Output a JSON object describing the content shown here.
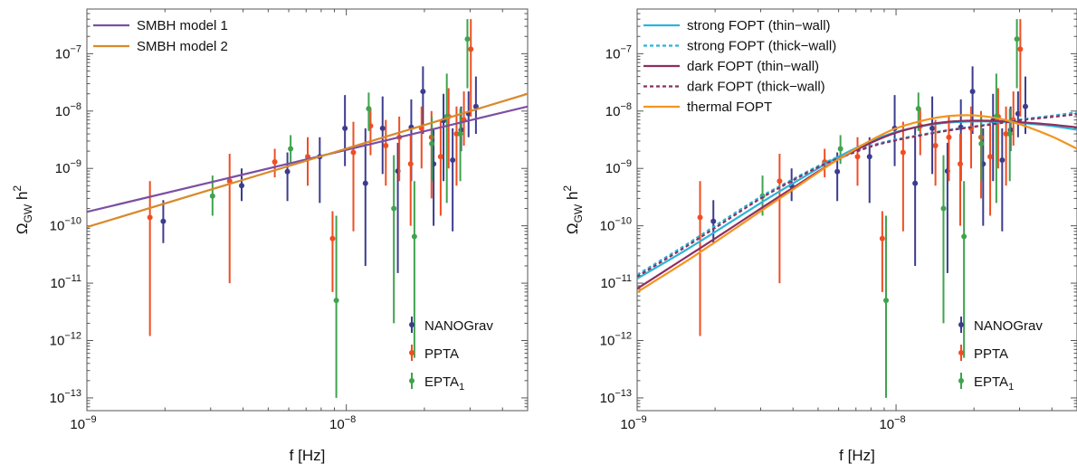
{
  "chart_data": [
    {
      "type": "scatter",
      "xlabel": "f [Hz]",
      "ylabel": "ΩGW h2",
      "xscale": "log",
      "yscale": "log",
      "xlim": [
        1e-09,
        5e-08
      ],
      "ylim": [
        6e-14,
        6e-07
      ],
      "x_ticks": [
        {
          "v": 1e-09,
          "m": "10",
          "e": "−9"
        },
        {
          "v": 1e-08,
          "m": "10",
          "e": "−8"
        }
      ],
      "y_ticks": [
        {
          "v": 1e-13,
          "m": "10",
          "e": "−13"
        },
        {
          "v": 1e-12,
          "m": "10",
          "e": "−12"
        },
        {
          "v": 1e-11,
          "m": "10",
          "e": "−11"
        },
        {
          "v": 1e-10,
          "m": "10",
          "e": "−10"
        },
        {
          "v": 1e-09,
          "m": "10",
          "e": "−9"
        },
        {
          "v": 1e-08,
          "m": "10",
          "e": "−8"
        },
        {
          "v": 1e-07,
          "m": "10",
          "e": "−7"
        }
      ],
      "legend_top": {
        "position": "top-left",
        "entries": [
          0,
          1
        ]
      },
      "legend_bottom": {
        "position": "bottom-right"
      },
      "curves": [
        {
          "name": "SMBH model 1",
          "color": "#7b4fa3",
          "style": "solid",
          "x": [
            1e-09,
            5e-08
          ],
          "y": [
            1.75e-10,
            1.2e-08
          ]
        },
        {
          "name": "SMBH model 2",
          "color": "#d9892b",
          "style": "solid",
          "x": [
            1e-09,
            5e-08
          ],
          "y": [
            9.5e-11,
            2e-08
          ]
        }
      ],
      "series": [
        {
          "name": "NANOGrav",
          "subscript": "",
          "color": "#3c3c8f",
          "points": [
            {
              "x": 1.97e-09,
              "y": 1.2e-10,
              "lo": 5e-11,
              "hi": 2.8e-10
            },
            {
              "x": 3.95e-09,
              "y": 5e-10,
              "lo": 2.7e-10,
              "hi": 1e-09
            },
            {
              "x": 5.93e-09,
              "y": 8.8e-10,
              "lo": 2.7e-10,
              "hi": 1.9e-09
            },
            {
              "x": 7.9e-09,
              "y": 1.6e-09,
              "lo": 2.5e-10,
              "hi": 3.5e-09
            },
            {
              "x": 9.88e-09,
              "y": 5e-09,
              "lo": 1.1e-09,
              "hi": 1.9e-08
            },
            {
              "x": 1.185e-08,
              "y": 5.5e-10,
              "lo": 2e-11,
              "hi": 5e-09
            },
            {
              "x": 1.38e-08,
              "y": 5e-09,
              "lo": 8e-10,
              "hi": 1.8e-08
            },
            {
              "x": 1.58e-08,
              "y": 9e-10,
              "lo": 1.5e-11,
              "hi": 2.8e-09
            },
            {
              "x": 1.78e-08,
              "y": 5.2e-09,
              "lo": 6e-10,
              "hi": 1.6e-08
            },
            {
              "x": 1.975e-08,
              "y": 2.2e-08,
              "lo": 4e-09,
              "hi": 6e-08
            },
            {
              "x": 2.17e-08,
              "y": 1.2e-09,
              "lo": 1e-10,
              "hi": 5e-09
            },
            {
              "x": 2.37e-08,
              "y": 6.8e-09,
              "lo": 6e-10,
              "hi": 2e-08
            },
            {
              "x": 2.57e-08,
              "y": 1.4e-09,
              "lo": 8e-11,
              "hi": 5e-09
            },
            {
              "x": 2.77e-08,
              "y": 4.7e-09,
              "lo": 2e-09,
              "hi": 1.2e-08
            },
            {
              "x": 2.96e-08,
              "y": 9e-09,
              "lo": 3.5e-09,
              "hi": 2.2e-08
            },
            {
              "x": 3.16e-08,
              "y": 1.2e-08,
              "lo": 4e-09,
              "hi": 4e-08
            }
          ]
        },
        {
          "name": "PPTA",
          "subscript": "",
          "color": "#ef4e23",
          "points": [
            {
              "x": 1.75e-09,
              "y": 1.4e-10,
              "lo": 1.2e-12,
              "hi": 6e-10
            },
            {
              "x": 3.55e-09,
              "y": 6e-10,
              "lo": 1e-11,
              "hi": 1.8e-09
            },
            {
              "x": 5.3e-09,
              "y": 1.3e-09,
              "lo": 7e-10,
              "hi": 2.2e-09
            },
            {
              "x": 7.1e-09,
              "y": 1.6e-09,
              "lo": 5e-10,
              "hi": 3.5e-09
            },
            {
              "x": 8.85e-09,
              "y": 6e-11,
              "lo": 7e-12,
              "hi": 1.8e-10
            },
            {
              "x": 1.065e-08,
              "y": 1.9e-09,
              "lo": 8e-11,
              "hi": 6.5e-09
            },
            {
              "x": 1.24e-08,
              "y": 5.5e-09,
              "lo": 1.7e-09,
              "hi": 1.1e-08
            },
            {
              "x": 1.42e-08,
              "y": 2.5e-09,
              "lo": 5e-10,
              "hi": 7e-09
            },
            {
              "x": 1.6e-08,
              "y": 3.5e-09,
              "lo": 6e-10,
              "hi": 8e-09
            },
            {
              "x": 1.77e-08,
              "y": 1.2e-09,
              "lo": 1e-10,
              "hi": 4e-09
            },
            {
              "x": 1.95e-08,
              "y": 5e-09,
              "lo": 1e-09,
              "hi": 1.2e-08
            },
            {
              "x": 2.13e-08,
              "y": 3.5e-09,
              "lo": 3e-10,
              "hi": 1e-08
            },
            {
              "x": 2.31e-08,
              "y": 1.6e-09,
              "lo": 1.5e-10,
              "hi": 7e-09
            },
            {
              "x": 2.48e-08,
              "y": 8e-09,
              "lo": 1e-09,
              "hi": 2.5e-08
            },
            {
              "x": 2.66e-08,
              "y": 4e-09,
              "lo": 5e-10,
              "hi": 1.2e-08
            },
            {
              "x": 2.84e-08,
              "y": 7e-09,
              "lo": 2.5e-09,
              "hi": 2.2e-08
            },
            {
              "x": 3.02e-08,
              "y": 1.2e-07,
              "lo": 8e-09,
              "hi": 4e-07
            }
          ]
        },
        {
          "name": "EPTA",
          "subscript": "1",
          "color": "#3fa34d",
          "points": [
            {
              "x": 3.05e-09,
              "y": 3.3e-10,
              "lo": 1.5e-10,
              "hi": 7.5e-10
            },
            {
              "x": 6.1e-09,
              "y": 2.2e-09,
              "lo": 1.2e-09,
              "hi": 3.8e-09
            },
            {
              "x": 9.15e-09,
              "y": 5e-12,
              "lo": 1e-13,
              "hi": 1.5e-10
            },
            {
              "x": 1.22e-08,
              "y": 1.1e-08,
              "lo": 4.5e-09,
              "hi": 2.1e-08
            },
            {
              "x": 1.525e-08,
              "y": 2e-10,
              "lo": 2e-12,
              "hi": 1.7e-09
            },
            {
              "x": 1.83e-08,
              "y": 6.5e-11,
              "lo": 5e-13,
              "hi": 6e-10
            },
            {
              "x": 2.135e-08,
              "y": 2.7e-09,
              "lo": 6e-10,
              "hi": 8e-09
            },
            {
              "x": 2.44e-08,
              "y": 8e-09,
              "lo": 2.5e-10,
              "hi": 4.5e-08
            },
            {
              "x": 2.75e-08,
              "y": 4e-09,
              "lo": 6e-10,
              "hi": 1.1e-08
            },
            {
              "x": 2.93e-08,
              "y": 1.8e-07,
              "lo": 2.5e-08,
              "hi": 4e-07
            }
          ]
        }
      ]
    },
    {
      "type": "scatter",
      "xlabel": "f [Hz]",
      "ylabel": "ΩGW h2",
      "xscale": "log",
      "yscale": "log",
      "xlim": [
        1e-09,
        5e-08
      ],
      "ylim": [
        6e-14,
        6e-07
      ],
      "x_ticks": [
        {
          "v": 1e-09,
          "m": "10",
          "e": "−9"
        },
        {
          "v": 1e-08,
          "m": "10",
          "e": "−8"
        }
      ],
      "y_ticks": [
        {
          "v": 1e-13,
          "m": "10",
          "e": "−13"
        },
        {
          "v": 1e-12,
          "m": "10",
          "e": "−12"
        },
        {
          "v": 1e-11,
          "m": "10",
          "e": "−11"
        },
        {
          "v": 1e-10,
          "m": "10",
          "e": "−10"
        },
        {
          "v": 1e-09,
          "m": "10",
          "e": "−9"
        },
        {
          "v": 1e-08,
          "m": "10",
          "e": "−8"
        },
        {
          "v": 1e-07,
          "m": "10",
          "e": "−7"
        }
      ],
      "legend_top": {
        "position": "top-left",
        "entries": [
          0,
          1,
          2,
          3,
          4
        ]
      },
      "legend_bottom": {
        "position": "bottom-right"
      },
      "curves": [
        {
          "name": "strong FOPT (thin−wall)",
          "color": "#2bb5d8",
          "style": "solid",
          "x": [
            1e-09,
            1.5e-09,
            2e-09,
            3e-09,
            4e-09,
            5e-09,
            6e-09,
            8e-09,
            1e-08,
            1.3e-08,
            1.6e-08,
            2e-08,
            2.5e-08,
            3e-08,
            4e-08,
            5e-08
          ],
          "y": [
            1.2e-11,
            3.5e-11,
            7.8e-11,
            2.5e-10,
            5.5e-10,
            1e-09,
            1.6e-09,
            3e-09,
            4.3e-09,
            5.6e-09,
            6.3e-09,
            6.6e-09,
            6.5e-09,
            6.2e-09,
            5.5e-09,
            4.7e-09
          ]
        },
        {
          "name": "strong FOPT (thick−wall)",
          "color": "#2bb5d8",
          "style": "dashed",
          "x": [
            1e-09,
            1.5e-09,
            2e-09,
            3e-09,
            4e-09,
            5e-09,
            6e-09,
            8e-09,
            1e-08,
            1.3e-08,
            1.6e-08,
            2e-08,
            2.5e-08,
            3e-08,
            4e-08,
            5e-08
          ],
          "y": [
            1.4e-11,
            4.3e-11,
            1e-10,
            3.2e-10,
            6.5e-10,
            1.1e-09,
            1.6e-09,
            2.5e-09,
            3.2e-09,
            4e-09,
            4.7e-09,
            5.4e-09,
            6.3e-09,
            7.1e-09,
            8.3e-09,
            9.5e-09
          ]
        },
        {
          "name": "dark FOPT (thin−wall)",
          "color": "#8e2e5f",
          "style": "solid",
          "x": [
            1e-09,
            1.5e-09,
            2e-09,
            3e-09,
            4e-09,
            5e-09,
            6e-09,
            8e-09,
            1e-08,
            1.3e-08,
            1.6e-08,
            2e-08,
            2.5e-08,
            3e-08,
            4e-08,
            5e-08
          ],
          "y": [
            8e-12,
            2.6e-11,
            6e-11,
            2e-10,
            4.6e-10,
            8.8e-10,
            1.45e-09,
            2.8e-09,
            4.2e-09,
            5.7e-09,
            6.5e-09,
            6.8e-09,
            6.7e-09,
            6.4e-09,
            5.8e-09,
            5.2e-09
          ]
        },
        {
          "name": "dark FOPT (thick−wall)",
          "color": "#8e2e5f",
          "style": "dashed",
          "x": [
            1e-09,
            1.5e-09,
            2e-09,
            3e-09,
            4e-09,
            5e-09,
            6e-09,
            8e-09,
            1e-08,
            1.3e-08,
            1.6e-08,
            2e-08,
            2.5e-08,
            3e-08,
            4e-08,
            5e-08
          ],
          "y": [
            1.3e-11,
            4e-11,
            9.2e-11,
            3e-10,
            6.2e-10,
            1.05e-09,
            1.5e-09,
            2.4e-09,
            3.1e-09,
            3.9e-09,
            4.6e-09,
            5.3e-09,
            6.1e-09,
            6.9e-09,
            7.9e-09,
            8.8e-09
          ]
        },
        {
          "name": "thermal FOPT",
          "color": "#f39420",
          "style": "solid",
          "x": [
            1e-09,
            1.5e-09,
            2e-09,
            3e-09,
            4e-09,
            5e-09,
            6e-09,
            8e-09,
            1e-08,
            1.3e-08,
            1.6e-08,
            2e-08,
            2.5e-08,
            3e-08,
            3.5e-08,
            4e-08,
            4.5e-08,
            5e-08
          ],
          "y": [
            7e-12,
            2.2e-11,
            5.2e-11,
            1.8e-10,
            4.3e-10,
            8.5e-10,
            1.45e-09,
            3.1e-09,
            5e-09,
            7e-09,
            8.2e-09,
            8.4e-09,
            7.4e-09,
            5.9e-09,
            4.6e-09,
            3.6e-09,
            2.8e-09,
            2.2e-09
          ]
        }
      ],
      "series_same_as_left": true
    }
  ]
}
